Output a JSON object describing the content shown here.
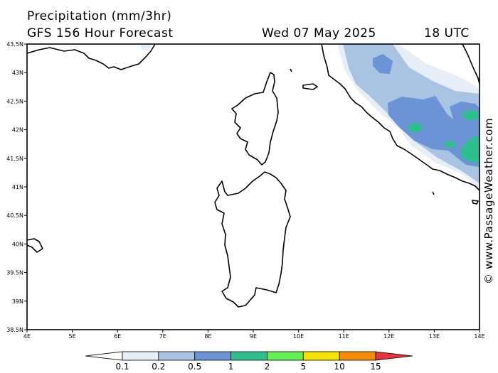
{
  "header": {
    "title": "Precipitation (mm/3hr)",
    "subtitle": "GFS 156 Hour Forecast",
    "date": "Wed 07 May 2025",
    "time": "18 UTC"
  },
  "map": {
    "lat_labels": [
      "43.5N",
      "43N",
      "42.5N",
      "42N",
      "41.5N",
      "41N",
      "40.5N",
      "40N",
      "39.5N",
      "39N",
      "38.5N"
    ],
    "lon_labels": [
      "4E",
      "5E",
      "6E",
      "7E",
      "8E",
      "9E",
      "10E",
      "11E",
      "12E",
      "13E",
      "14E"
    ],
    "watermark": "© www.PassageWeather.com"
  },
  "legend": {
    "labels": [
      "0.1",
      "0.2",
      "0.5",
      "1",
      "2",
      "5",
      "10",
      "15"
    ],
    "colors": [
      "#ffffff",
      "#e6eef8",
      "#a9c3e3",
      "#6b93d6",
      "#2fbf8f",
      "#66ee55",
      "#f4e300",
      "#f58c05",
      "#e8323c"
    ]
  },
  "colors": {
    "precip_light": "#e6eef8",
    "precip_low": "#a9c3e3",
    "precip_mid": "#6b93d6",
    "precip_high": "#2fbf8f"
  }
}
